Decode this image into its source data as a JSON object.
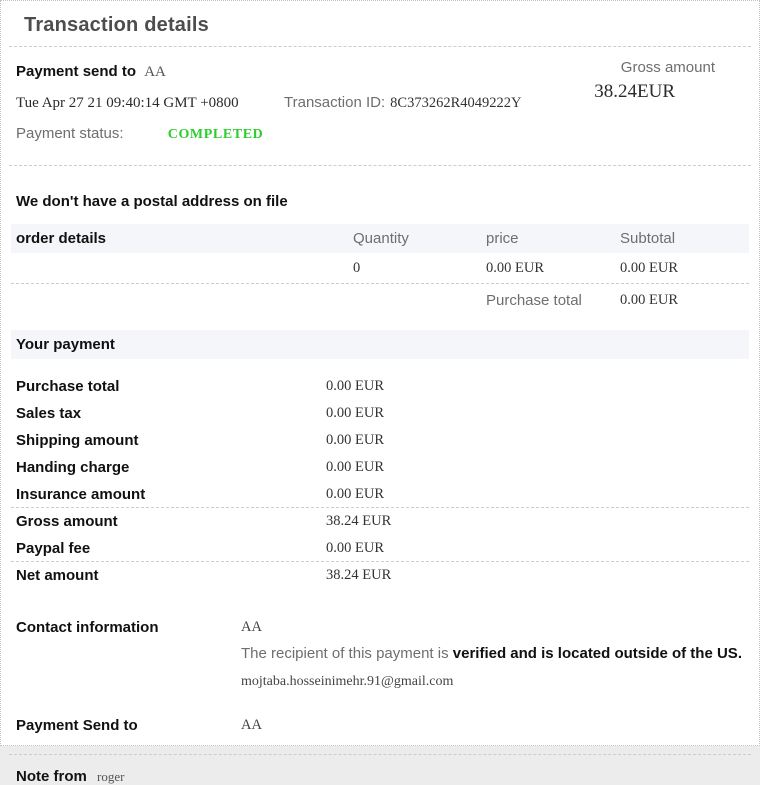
{
  "page": {
    "title": "Transaction details"
  },
  "summary": {
    "payment_send_to_label": "Payment send to",
    "payment_send_to_value": "AA",
    "gross_amount_label": "Gross amount",
    "gross_amount_value": "38.24EUR",
    "date": "Tue Apr 27 21 09:40:14 GMT +0800",
    "transaction_id_label": "Transaction ID:",
    "transaction_id_value": "8C373262R4049222Y",
    "payment_status_label": "Payment status:",
    "payment_status_value": "COMPLETED",
    "status_color": "#2ecc2e"
  },
  "postal_notice": "We don't have a postal address on file",
  "order_table": {
    "headers": {
      "order_details": "order details",
      "quantity": "Quantity",
      "price": "price",
      "subtotal": "Subtotal"
    },
    "row": {
      "quantity": "0",
      "price": "0.00 EUR",
      "subtotal": "0.00 EUR"
    },
    "purchase_total_label": "Purchase total",
    "purchase_total_value": "0.00 EUR"
  },
  "your_payment": {
    "title": "Your payment",
    "rows": [
      {
        "label": "Purchase total",
        "value": "0.00 EUR"
      },
      {
        "label": "Sales tax",
        "value": "0.00 EUR"
      },
      {
        "label": "Shipping amount",
        "value": "0.00 EUR"
      },
      {
        "label": "Handing charge",
        "value": "0.00 EUR"
      },
      {
        "label": "Insurance amount",
        "value": "0.00 EUR"
      },
      {
        "label": "Gross amount",
        "value": "38.24 EUR"
      },
      {
        "label": "Paypal fee",
        "value": "0.00 EUR"
      },
      {
        "label": "Net amount",
        "value": "38.24 EUR"
      }
    ]
  },
  "contact": {
    "label": "Contact information",
    "name": "AA",
    "recipient_prefix": "The recipient of this payment is ",
    "recipient_bold": "verified and is located outside of the US.",
    "email": "mojtaba.hosseinimehr.91@gmail.com"
  },
  "payment_send_to": {
    "label": "Payment Send to",
    "value": "AA"
  },
  "note": {
    "label": "Note from",
    "value": "roger"
  }
}
